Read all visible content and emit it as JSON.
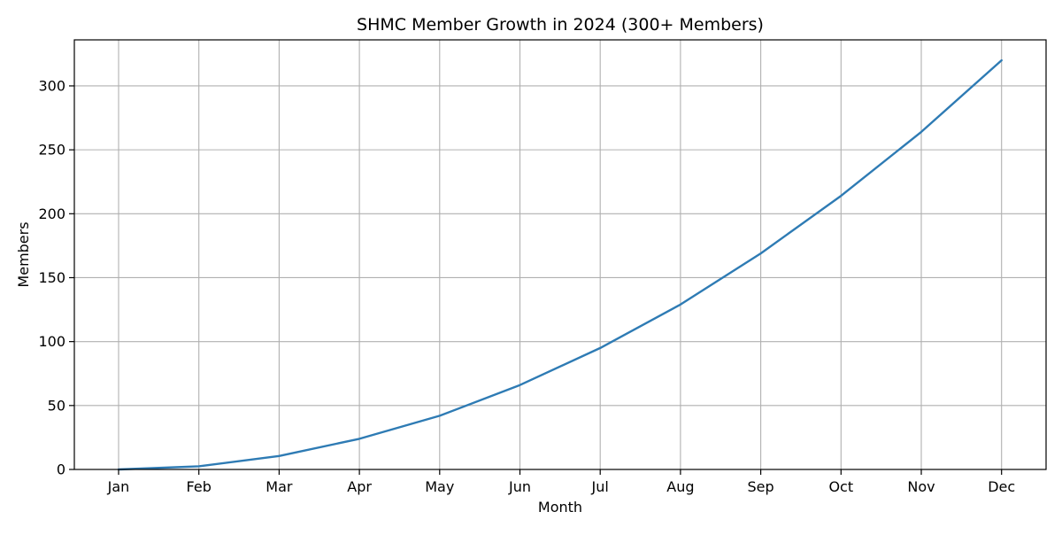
{
  "chart_data": {
    "type": "line",
    "title": "SHMC Member Growth in 2024 (300+ Members)",
    "xlabel": "Month",
    "ylabel": "Members",
    "categories": [
      "Jan",
      "Feb",
      "Mar",
      "Apr",
      "May",
      "Jun",
      "Jul",
      "Aug",
      "Sep",
      "Oct",
      "Nov",
      "Dec"
    ],
    "series": [
      {
        "values": [
          0,
          2.5,
          10.5,
          24,
          42,
          66,
          95,
          129,
          169,
          214,
          264,
          320
        ],
        "color": "#2e7bb4"
      }
    ],
    "ylim": [
      0,
      336
    ],
    "yticks": [
      "0",
      "50",
      "100",
      "150",
      "200",
      "250",
      "300"
    ],
    "grid": true
  }
}
